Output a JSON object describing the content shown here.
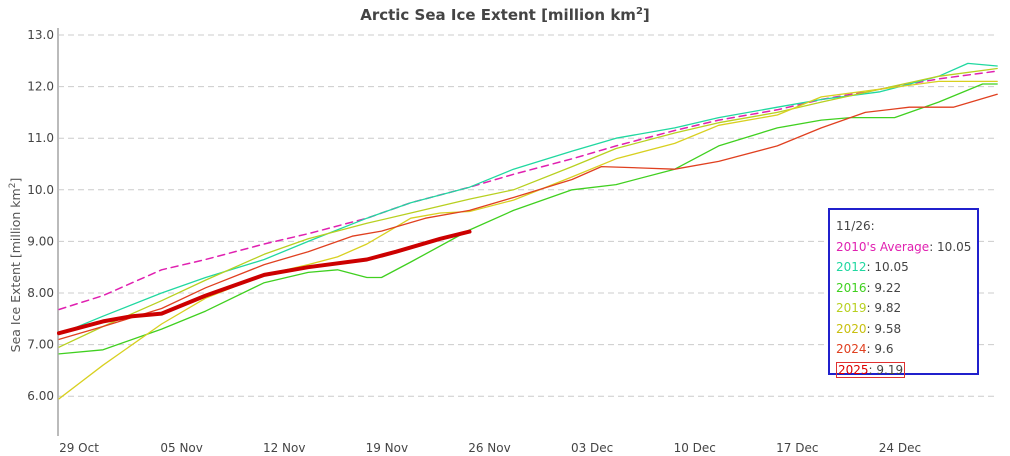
{
  "chart_data": {
    "type": "line",
    "title": "Arctic Sea Ice Extent [million km",
    "title_sup": "2",
    "title_end": "]",
    "ylabel": "Sea Ice Extent [million km",
    "ylabel_sup": "2",
    "ylabel_end": "]",
    "xlabel": "",
    "ylim": [
      5.25,
      13.1
    ],
    "x_unit": "days from 29 Oct",
    "xlim_dates": [
      "29 Oct",
      "01 Jan"
    ],
    "yticks": [
      {
        "value": 13,
        "label": "13.0"
      },
      {
        "value": 12,
        "label": "12.0"
      },
      {
        "value": 11,
        "label": "11.0"
      },
      {
        "value": 10,
        "label": "10.0"
      },
      {
        "value": 9,
        "label": "9.00"
      },
      {
        "value": 8,
        "label": "8.00"
      },
      {
        "value": 7,
        "label": "7.00"
      },
      {
        "value": 6,
        "label": "6.00"
      }
    ],
    "xticks": [
      {
        "day": 0,
        "label": "29 Oct"
      },
      {
        "day": 7,
        "label": "05 Nov"
      },
      {
        "day": 14,
        "label": "12 Nov"
      },
      {
        "day": 21,
        "label": "19 Nov"
      },
      {
        "day": 28,
        "label": "26 Nov"
      },
      {
        "day": 35,
        "label": "03 Dec"
      },
      {
        "day": 42,
        "label": "10 Dec"
      },
      {
        "day": 49,
        "label": "17 Dec"
      },
      {
        "day": 56,
        "label": "24 Dec"
      }
    ],
    "grid": "horizontal dashed",
    "legend_placement": "right",
    "series": [
      {
        "name": "2010's Average",
        "color": "#e020b0",
        "dashed": true,
        "width": 1.5,
        "points": [
          [
            0,
            7.68
          ],
          [
            3,
            7.95
          ],
          [
            7,
            8.45
          ],
          [
            10,
            8.65
          ],
          [
            14,
            8.95
          ],
          [
            17,
            9.15
          ],
          [
            21,
            9.45
          ],
          [
            24,
            9.75
          ],
          [
            28,
            10.05
          ],
          [
            31,
            10.3
          ],
          [
            35,
            10.6
          ],
          [
            38,
            10.85
          ],
          [
            42,
            11.15
          ],
          [
            45,
            11.35
          ],
          [
            49,
            11.55
          ],
          [
            52,
            11.75
          ],
          [
            56,
            11.95
          ],
          [
            60,
            12.15
          ],
          [
            64,
            12.3
          ]
        ]
      },
      {
        "name": "2012",
        "color": "#20d8a0",
        "width": 1.3,
        "points": [
          [
            0,
            7.2
          ],
          [
            3,
            7.55
          ],
          [
            7,
            8.0
          ],
          [
            10,
            8.3
          ],
          [
            14,
            8.65
          ],
          [
            17,
            9.0
          ],
          [
            21,
            9.45
          ],
          [
            24,
            9.75
          ],
          [
            28,
            10.05
          ],
          [
            31,
            10.4
          ],
          [
            35,
            10.75
          ],
          [
            38,
            11.0
          ],
          [
            42,
            11.2
          ],
          [
            45,
            11.4
          ],
          [
            49,
            11.6
          ],
          [
            52,
            11.75
          ],
          [
            56,
            11.9
          ],
          [
            60,
            12.2
          ],
          [
            62,
            12.45
          ],
          [
            64,
            12.4
          ]
        ]
      },
      {
        "name": "2016",
        "color": "#40d020",
        "width": 1.3,
        "points": [
          [
            0,
            6.82
          ],
          [
            3,
            6.9
          ],
          [
            7,
            7.3
          ],
          [
            10,
            7.65
          ],
          [
            14,
            8.2
          ],
          [
            17,
            8.4
          ],
          [
            19,
            8.45
          ],
          [
            21,
            8.3
          ],
          [
            22,
            8.3
          ],
          [
            24,
            8.6
          ],
          [
            28,
            9.22
          ],
          [
            31,
            9.6
          ],
          [
            35,
            10.0
          ],
          [
            38,
            10.1
          ],
          [
            42,
            10.4
          ],
          [
            45,
            10.85
          ],
          [
            49,
            11.2
          ],
          [
            52,
            11.35
          ],
          [
            54,
            11.4
          ],
          [
            57,
            11.4
          ],
          [
            60,
            11.7
          ],
          [
            63,
            12.05
          ],
          [
            64,
            12.05
          ]
        ]
      },
      {
        "name": "2019",
        "color": "#b8d020",
        "width": 1.3,
        "points": [
          [
            0,
            6.95
          ],
          [
            3,
            7.35
          ],
          [
            7,
            7.85
          ],
          [
            10,
            8.25
          ],
          [
            14,
            8.75
          ],
          [
            17,
            9.05
          ],
          [
            21,
            9.35
          ],
          [
            24,
            9.55
          ],
          [
            28,
            9.82
          ],
          [
            31,
            10.0
          ],
          [
            35,
            10.45
          ],
          [
            38,
            10.8
          ],
          [
            42,
            11.1
          ],
          [
            45,
            11.3
          ],
          [
            49,
            11.5
          ],
          [
            52,
            11.7
          ],
          [
            56,
            11.95
          ],
          [
            60,
            12.2
          ],
          [
            64,
            12.35
          ]
        ]
      },
      {
        "name": "2020",
        "color": "#d8d020",
        "width": 1.3,
        "points": [
          [
            0,
            5.95
          ],
          [
            3,
            6.6
          ],
          [
            7,
            7.4
          ],
          [
            10,
            7.9
          ],
          [
            14,
            8.35
          ],
          [
            17,
            8.55
          ],
          [
            19,
            8.7
          ],
          [
            21,
            8.95
          ],
          [
            24,
            9.45
          ],
          [
            26,
            9.55
          ],
          [
            28,
            9.58
          ],
          [
            31,
            9.8
          ],
          [
            35,
            10.25
          ],
          [
            38,
            10.6
          ],
          [
            42,
            10.9
          ],
          [
            45,
            11.25
          ],
          [
            49,
            11.45
          ],
          [
            52,
            11.8
          ],
          [
            56,
            11.95
          ],
          [
            60,
            12.1
          ],
          [
            64,
            12.1
          ]
        ]
      },
      {
        "name": "2024",
        "color": "#e04020",
        "width": 1.3,
        "points": [
          [
            0,
            7.1
          ],
          [
            3,
            7.35
          ],
          [
            7,
            7.7
          ],
          [
            10,
            8.1
          ],
          [
            14,
            8.55
          ],
          [
            17,
            8.8
          ],
          [
            20,
            9.1
          ],
          [
            22,
            9.2
          ],
          [
            25,
            9.45
          ],
          [
            28,
            9.6
          ],
          [
            31,
            9.85
          ],
          [
            35,
            10.2
          ],
          [
            37,
            10.45
          ],
          [
            40,
            10.42
          ],
          [
            42,
            10.4
          ],
          [
            45,
            10.55
          ],
          [
            49,
            10.85
          ],
          [
            52,
            11.2
          ],
          [
            55,
            11.5
          ],
          [
            58,
            11.6
          ],
          [
            61,
            11.6
          ],
          [
            64,
            11.85
          ]
        ]
      },
      {
        "name": "2025",
        "color": "#cc0000",
        "width": 4,
        "points": [
          [
            0,
            7.22
          ],
          [
            3,
            7.45
          ],
          [
            5,
            7.55
          ],
          [
            7,
            7.6
          ],
          [
            10,
            7.95
          ],
          [
            14,
            8.35
          ],
          [
            17,
            8.5
          ],
          [
            21,
            8.65
          ],
          [
            23,
            8.8
          ],
          [
            26,
            9.05
          ],
          [
            28,
            9.19
          ]
        ]
      }
    ]
  },
  "legend": {
    "date": "11/26:",
    "entries": [
      {
        "name": "2010's Average",
        "value": "10.05",
        "color": "#e020b0"
      },
      {
        "name": "2012",
        "value": "10.05",
        "color": "#20d8a0"
      },
      {
        "name": "2016",
        "value": "9.22",
        "color": "#40d020"
      },
      {
        "name": "2019",
        "value": "9.82",
        "color": "#b8d020"
      },
      {
        "name": "2020",
        "value": "9.58",
        "color": "#c8c010"
      },
      {
        "name": "2024",
        "value": "9.6",
        "color": "#e04020"
      },
      {
        "name": "2025",
        "value": "9.19",
        "color": "#dd0000",
        "highlight": true
      }
    ]
  }
}
